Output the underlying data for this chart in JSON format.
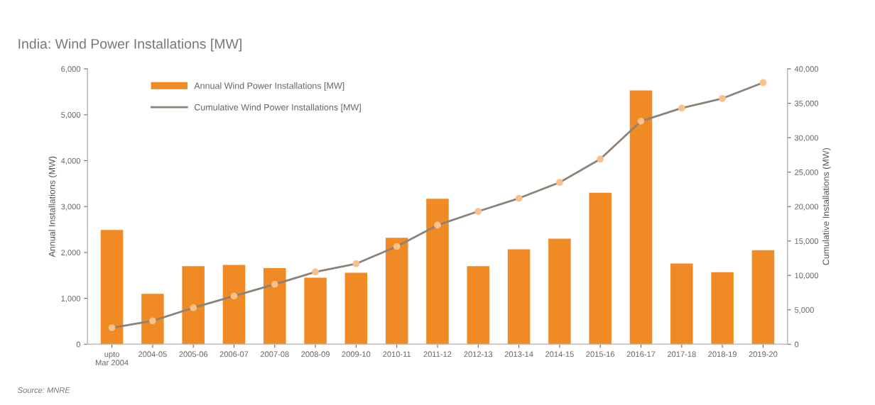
{
  "chart_data": {
    "type": "bar",
    "title": "India: Wind Power Installations [MW]",
    "categories": [
      "upto\nMar 2004",
      "2004-05",
      "2005-06",
      "2006-07",
      "2007-08",
      "2008-09",
      "2009-10",
      "2010-11",
      "2011-12",
      "2012-13",
      "2013-14",
      "2014-15",
      "2015-16",
      "2016-17",
      "2017-18",
      "2018-19",
      "2019-20"
    ],
    "series": [
      {
        "name": "Annual Wind Power Installations [MW]",
        "color": "#f08a24",
        "values": [
          2490,
          1100,
          1700,
          1730,
          1660,
          1450,
          1560,
          2320,
          3170,
          1700,
          2070,
          2300,
          3300,
          5530,
          1760,
          1570,
          2050
        ]
      },
      {
        "name": "Cumulative Wind Power Installations [MW]",
        "type": "line",
        "axis": "y2",
        "color": "#8c8278",
        "colors": [
          "#f9c08a",
          "#f9c08a",
          "#f9c08a",
          "#f9c08a",
          "#f9c08a",
          "#f9c08a",
          "#f9c08a",
          "#f9c08a",
          "#f9c08a",
          "#f9c08a",
          "#f9c08a",
          "#f9c08a",
          "#f9c08a",
          "#f9c08a",
          "#f9c08a",
          "#f9c08a",
          "#f9c08a"
        ],
        "values": [
          2400,
          3400,
          5300,
          7000,
          8700,
          10500,
          11700,
          14200,
          17300,
          19300,
          21200,
          23500,
          26900,
          32400,
          34300,
          35700,
          38000
        ]
      }
    ],
    "ylabel": "Annual Installations (MW)",
    "y2label": "Cumulative Installations (MW)",
    "ylim": [
      0,
      6000
    ],
    "yticks": [
      0,
      {
        "value": 1000,
        "label": "1,000"
      },
      {
        "value": 2000,
        "label": "2,000"
      },
      {
        "value": 3000,
        "label": "3,000"
      },
      {
        "value": 4000,
        "label": "4,000"
      },
      {
        "value": 5000,
        "label": "5,000"
      },
      {
        "value": 6000,
        "label": "6,000"
      }
    ],
    "y2lim": [
      0,
      40000
    ],
    "y2ticks": [
      0,
      {
        "value": 5000,
        "label": "5,000"
      },
      {
        "value": 10000,
        "label": "10,000"
      },
      {
        "value": 15000,
        "label": "15,000"
      },
      {
        "value": 20000,
        "label": "20,000"
      },
      {
        "value": 25000,
        "label": "25,000"
      },
      {
        "value": 30000,
        "label": "30,000"
      },
      {
        "value": 35000,
        "label": "35,000"
      },
      {
        "value": 40000,
        "label": "40,000"
      }
    ],
    "marker": "circle",
    "line_style": "solid",
    "legend": "top left",
    "grid": false,
    "annotations": [
      "Source: MNRE"
    ]
  }
}
